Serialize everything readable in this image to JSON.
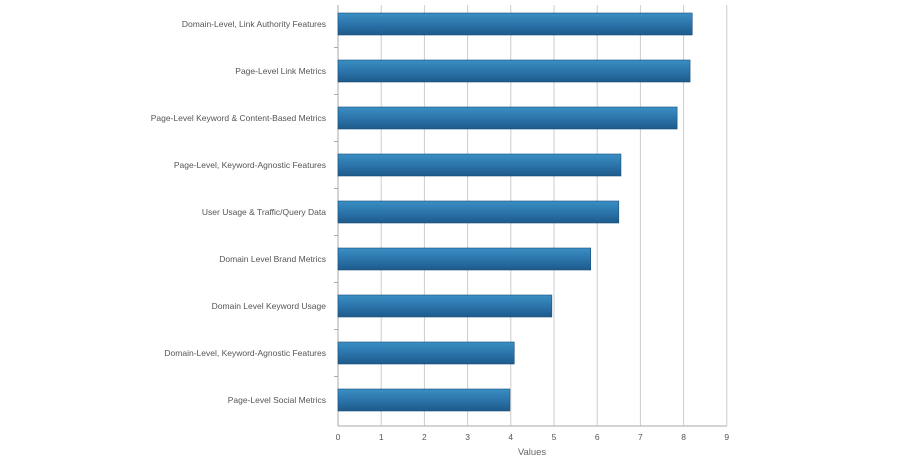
{
  "chart_data": {
    "type": "bar",
    "orientation": "horizontal",
    "title": "",
    "xlabel": "Values",
    "ylabel": "",
    "xlim": [
      0,
      9
    ],
    "xticks": [
      0,
      1,
      2,
      3,
      4,
      5,
      6,
      7,
      8,
      9
    ],
    "grid": true,
    "legend": "none",
    "categories": [
      "Domain-Level, Link Authority Features",
      "Page-Level Link Metrics",
      "Page-Level Keyword & Content-Based Metrics",
      "Page-Level, Keyword-Agnostic Features",
      "User Usage & Traffic/Query Data",
      "Domain Level Brand Metrics",
      "Domain Level Keyword Usage",
      "Domain-Level, Keyword-Agnostic Features",
      "Page-Level Social Metrics"
    ],
    "values": [
      8.2,
      8.15,
      7.85,
      6.55,
      6.5,
      5.85,
      4.95,
      4.08,
      3.98
    ],
    "colors": {
      "bar_top": "#3a8fc4",
      "bar_bottom": "#1e5a8a",
      "grid": "#cccccc",
      "axis": "#aaaaaa"
    }
  }
}
